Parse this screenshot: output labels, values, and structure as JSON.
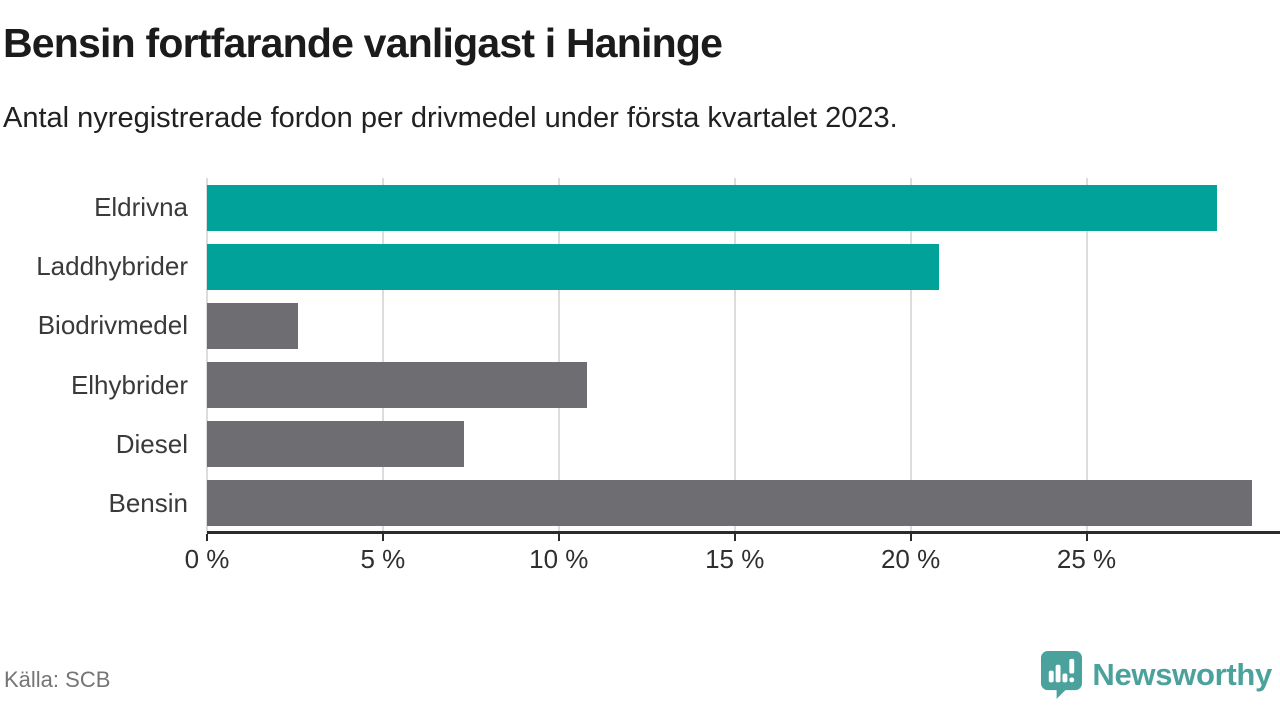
{
  "title": "Bensin fortfarande vanligast i Haninge",
  "subtitle": "Antal nyregistrerade fordon per drivmedel under första kvartalet 2023.",
  "source": "Källa: SCB",
  "brand": {
    "name": "Newsworthy",
    "icon": "newsworthy-speech-bubble-barchart-icon",
    "color": "#4ba29d"
  },
  "colors": {
    "highlight_bar": "#00a29a",
    "default_bar": "#6e6e72",
    "gridline": "#dcdcdc",
    "axis": "#2b2b2b",
    "title_text": "#1b1b1b",
    "category_text": "#3a3a3a",
    "tick_text": "#2f2f2f",
    "source_text": "#757575"
  },
  "chart_data": {
    "type": "bar",
    "orientation": "horizontal",
    "title": "Bensin fortfarande vanligast i Haninge",
    "subtitle": "Antal nyregistrerade fordon per drivmedel under första kvartalet 2023.",
    "categories": [
      "Eldrivna",
      "Laddhybrider",
      "Biodrivmedel",
      "Elhybrider",
      "Diesel",
      "Bensin"
    ],
    "values": [
      28.7,
      20.8,
      2.6,
      10.8,
      7.3,
      29.7
    ],
    "unit": "%",
    "bar_colors": [
      "#00a29a",
      "#00a29a",
      "#6e6e72",
      "#6e6e72",
      "#6e6e72",
      "#6e6e72"
    ],
    "xlim": [
      0,
      30.5
    ],
    "x_ticks": [
      0,
      5,
      10,
      15,
      20,
      25
    ],
    "x_tick_labels": [
      "0 %",
      "5 %",
      "10 %",
      "15 %",
      "20 %",
      "25 %"
    ],
    "grid": "vertical",
    "legend": "none",
    "value_labels": "none"
  }
}
